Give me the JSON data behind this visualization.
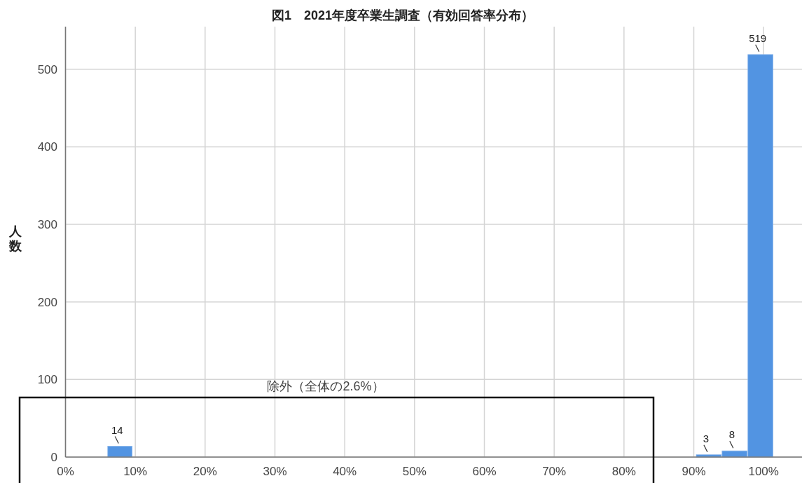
{
  "chart_data": {
    "type": "histogram",
    "title": "図1　2021年度卒業生調査（有効回答率分布）",
    "ylabel": "人数",
    "bins": [
      6.0,
      9.6,
      90.3,
      94.0,
      97.7,
      101.4
    ],
    "values": [
      14,
      0,
      3,
      8,
      519
    ],
    "value_labels": [
      "14",
      null,
      "3",
      "8",
      "519"
    ],
    "color": "#5294e2",
    "xlim": [
      0,
      105.5
    ],
    "ylim": [
      0,
      555
    ],
    "xticks": [
      {
        "value": 0,
        "label": "0%"
      },
      {
        "value": 10,
        "label": "10%"
      },
      {
        "value": 20,
        "label": "20%"
      },
      {
        "value": 30,
        "label": "30%"
      },
      {
        "value": 40,
        "label": "40%"
      },
      {
        "value": 50,
        "label": "50%"
      },
      {
        "value": 60,
        "label": "60%"
      },
      {
        "value": 70,
        "label": "70%"
      },
      {
        "value": 80,
        "label": "80%"
      },
      {
        "value": 90,
        "label": "90%"
      },
      {
        "value": 100,
        "label": "100%"
      }
    ],
    "yticks": [
      0,
      100,
      200,
      300,
      400,
      500
    ],
    "grid": true,
    "annotations": [
      "除外（全体の2.6%）"
    ]
  }
}
